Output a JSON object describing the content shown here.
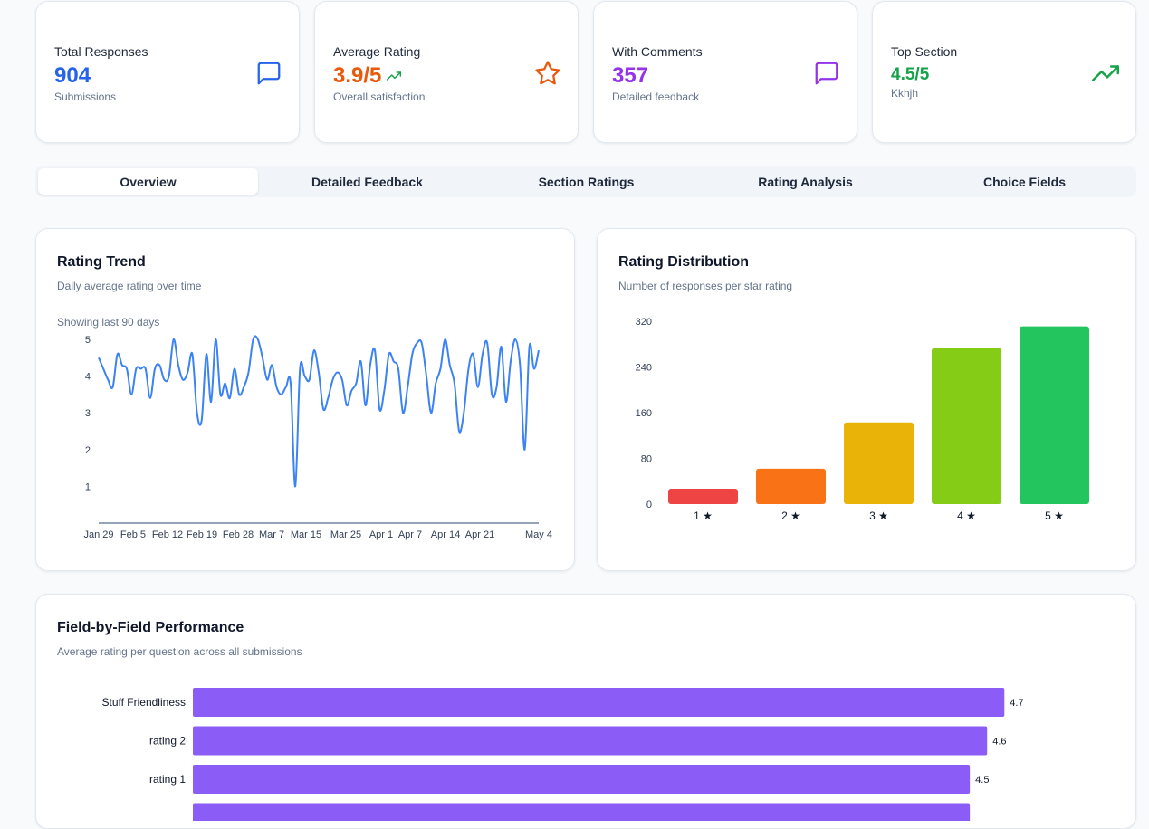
{
  "stats": [
    {
      "title": "Total Responses",
      "value": "904",
      "subtitle": "Submissions",
      "color": "#2563eb",
      "icon": "message-square-icon"
    },
    {
      "title": "Average Rating",
      "value": "3.9/5",
      "subtitle": "Overall satisfaction",
      "color": "#ea580c",
      "icon": "star-icon",
      "trend_icon": "trending-up-icon"
    },
    {
      "title": "With Comments",
      "value": "357",
      "subtitle": "Detailed feedback",
      "color": "#9333ea",
      "icon": "message-square-icon"
    },
    {
      "title": "Top Section",
      "value": "4.5/5",
      "subtitle": "Kkhjh",
      "color": "#16a34a",
      "icon": "trending-up-icon"
    }
  ],
  "tabs": [
    {
      "label": "Overview",
      "active": true
    },
    {
      "label": "Detailed Feedback",
      "active": false
    },
    {
      "label": "Section Ratings",
      "active": false
    },
    {
      "label": "Rating Analysis",
      "active": false
    },
    {
      "label": "Choice Fields",
      "active": false
    }
  ],
  "trend_panel": {
    "title": "Rating Trend",
    "subtitle": "Daily average rating over time",
    "note": "Showing last 90 days"
  },
  "distribution_panel": {
    "title": "Rating Distribution",
    "subtitle": "Number of responses per star rating"
  },
  "field_panel": {
    "title": "Field-by-Field Performance",
    "subtitle": "Average rating per question across all submissions"
  },
  "chart_data": [
    {
      "type": "line",
      "title": "Rating Trend",
      "ylim": [
        0,
        5
      ],
      "yticks": [
        1,
        2,
        3,
        4,
        5
      ],
      "xticks": [
        "Jan 29",
        "Feb 5",
        "Feb 12",
        "Feb 19",
        "Feb 28",
        "Mar 7",
        "Mar 15",
        "Mar 25",
        "Apr 1",
        "Apr 7",
        "Apr 14",
        "Apr 21",
        "May 4"
      ],
      "color": "#3b82f6",
      "series": [
        {
          "values": [
            4.5,
            4.2,
            3.9,
            3.7,
            4.6,
            4.3,
            4.2,
            3.5,
            4.2,
            4.2,
            4.2,
            3.4,
            4.2,
            4.3,
            3.9,
            4.0,
            5.0,
            4.3,
            3.9,
            4.1,
            4.6,
            3.0,
            2.8,
            4.6,
            3.3,
            5.0,
            3.5,
            3.8,
            3.4,
            4.2,
            3.5,
            3.7,
            4.1,
            5.0,
            5.0,
            4.5,
            3.9,
            4.3,
            3.7,
            3.5,
            3.7,
            3.8,
            1.0,
            4.2,
            4.0,
            3.9,
            4.7,
            4.1,
            3.1,
            3.4,
            3.9,
            4.1,
            3.9,
            3.2,
            3.6,
            3.8,
            4.4,
            3.2,
            4.3,
            4.7,
            3.1,
            3.6,
            4.6,
            4.4,
            4.2,
            3.0,
            3.7,
            4.6,
            4.9,
            4.9,
            4.0,
            3.0,
            3.8,
            4.2,
            5.0,
            4.3,
            3.8,
            2.5,
            3.0,
            4.2,
            4.6,
            3.7,
            4.6,
            4.9,
            3.5,
            3.7,
            4.8,
            3.3,
            4.4,
            5.0,
            4.3,
            2.0,
            4.8,
            4.2,
            4.7
          ]
        }
      ]
    },
    {
      "type": "bar",
      "title": "Rating Distribution",
      "categories": [
        "1 ★",
        "2 ★",
        "3 ★",
        "4 ★",
        "5 ★"
      ],
      "values": [
        27,
        62,
        143,
        273,
        311
      ],
      "colors": [
        "#ef4444",
        "#f97316",
        "#eab308",
        "#84cc16",
        "#22c55e"
      ],
      "ylim": [
        0,
        320
      ],
      "yticks": [
        0,
        80,
        160,
        240,
        320
      ]
    },
    {
      "type": "bar",
      "orientation": "horizontal",
      "title": "Field-by-Field Performance",
      "categories": [
        "Stuff Friendliness",
        "rating 2",
        "rating 1",
        ""
      ],
      "values": [
        4.7,
        4.6,
        4.5,
        4.5
      ],
      "value_labels": [
        "4.7",
        "4.6",
        "4.5",
        ""
      ],
      "color": "#8b5cf6",
      "xlim": [
        0,
        5
      ]
    }
  ]
}
